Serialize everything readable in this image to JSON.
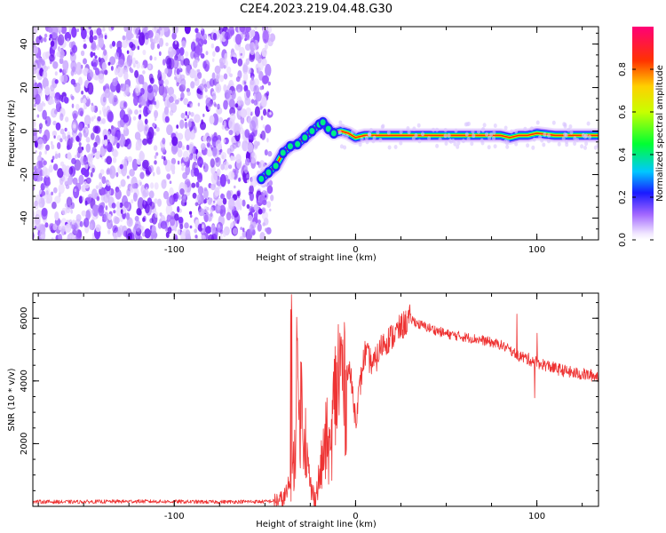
{
  "title": "C2E4.2023.219.04.48.G30",
  "chart_data": [
    {
      "type": "heatmap",
      "xlabel": "Height of straight line (km)",
      "ylabel": "Frequency (Hz)",
      "xlim": [
        -178,
        134
      ],
      "ylim": [
        -50,
        48
      ],
      "xticks": [
        -100,
        0,
        100
      ],
      "yticks": [
        -40,
        -20,
        0,
        20,
        40
      ],
      "noise_region": {
        "x": [
          -178,
          -47
        ],
        "y": [
          -50,
          48
        ]
      },
      "signal_trace": {
        "x": [
          -52,
          -48,
          -44,
          -40,
          -36,
          -32,
          -28,
          -24,
          -20,
          -18,
          -15,
          -12,
          -8,
          -4,
          0,
          5,
          10,
          20,
          30,
          40,
          50,
          60,
          70,
          75,
          80,
          85,
          90,
          95,
          100,
          110,
          120,
          134
        ],
        "y": [
          -22,
          -19,
          -16,
          -10,
          -7,
          -6,
          -3,
          0,
          3,
          4,
          1,
          -1,
          0,
          -1,
          -3,
          -2,
          -2,
          -2,
          -2,
          -2,
          -2,
          -2,
          -2,
          -2,
          -2,
          -3,
          -2,
          -2,
          -1,
          -2,
          -2,
          -2
        ]
      },
      "colorbar": {
        "label": "Normalized spectral amplitude",
        "ticks": [
          "0.0",
          "0.2",
          "0.4",
          "0.6",
          "0.8"
        ],
        "range": [
          0,
          1
        ]
      }
    },
    {
      "type": "line",
      "xlabel": "Height of straight line (km)",
      "ylabel": "SNR (10 * v/v)",
      "xlim": [
        -178,
        134
      ],
      "ylim": [
        0,
        6800
      ],
      "xticks": [
        -100,
        0,
        100
      ],
      "yticks": [
        2000,
        4000,
        6000
      ],
      "color": "#ee3333",
      "series": [
        {
          "x": [
            -178,
            -160,
            -140,
            -120,
            -100,
            -80,
            -60,
            -50,
            -40,
            -36,
            -34,
            -32,
            -30,
            -28,
            -26,
            -24,
            -22,
            -20,
            -18,
            -16,
            -14,
            -12,
            -10,
            -8,
            -6,
            -4,
            -2,
            0,
            5,
            10,
            15,
            20,
            25,
            30,
            35,
            40,
            50,
            60,
            70,
            80,
            85,
            90,
            95,
            100,
            105,
            110,
            120,
            134
          ],
          "y": [
            150,
            140,
            150,
            160,
            150,
            140,
            150,
            150,
            200,
            600,
            1500,
            2500,
            3300,
            2500,
            1000,
            400,
            300,
            900,
            1500,
            2200,
            1500,
            3200,
            4000,
            4500,
            3600,
            4600,
            3800,
            2800,
            4900,
            4500,
            5200,
            5400,
            5700,
            6000,
            5800,
            5700,
            5500,
            5400,
            5300,
            5150,
            5000,
            4800,
            4700,
            4600,
            4500,
            4400,
            4250,
            4150
          ]
        }
      ]
    }
  ]
}
